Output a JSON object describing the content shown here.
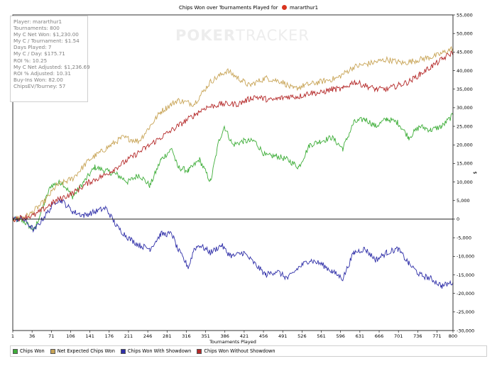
{
  "title": {
    "text": "Chips Won over Tournaments Played for",
    "player": "mararthur1"
  },
  "watermark": {
    "part1": "POKER",
    "part2": "TRACKER"
  },
  "info_box": {
    "lines": [
      "Player: mararthur1",
      "Tournaments: 800",
      "My C Net Won: $1,230.00",
      "My C / Tournament: $1.54",
      "Days Played: 7",
      "My C / Day: $175.71",
      "ROI %: 10.25",
      "My C Net Adjusted: $1,236.69",
      "ROI % Adjusted: 10.31",
      "Buy-Ins Won: 82.00",
      "ChipsEV/Tourney: 57"
    ]
  },
  "legend": [
    {
      "label": "Chips Won",
      "color": "#3fae3a"
    },
    {
      "label": "Net Expected Chips Won",
      "color": "#c8a456"
    },
    {
      "label": "Chips Won With Showdown",
      "color": "#2f2fa8"
    },
    {
      "label": "Chips Won Without Showdown",
      "color": "#b52a2a"
    }
  ],
  "chart_data": {
    "type": "line",
    "title": "Chips Won over Tournaments Played for mararthur1",
    "xlabel": "Tournaments Played",
    "ylabel": "$",
    "xlim": [
      1,
      800
    ],
    "ylim": [
      -30000,
      55000
    ],
    "x_ticks": [
      "1",
      "36",
      "71",
      "106",
      "141",
      "176",
      "211",
      "246",
      "281",
      "316",
      "351",
      "386",
      "421",
      "456",
      "491",
      "526",
      "561",
      "596",
      "631",
      "666",
      "701",
      "736",
      "771",
      "800"
    ],
    "y_ticks": [
      -30000,
      -25000,
      -20000,
      -15000,
      -10000,
      -5000,
      0,
      5000,
      10000,
      15000,
      20000,
      25000,
      30000,
      35000,
      40000,
      45000,
      50000,
      55000
    ],
    "y_tick_labels": [
      "-30,000",
      "-25,000",
      "-20,000",
      "-15,000",
      "-10,000",
      "-5,000",
      "0",
      "5,000",
      "10,000",
      "15,000",
      "20,000",
      "25,000",
      "30,000",
      "35,000",
      "40,000",
      "45,000",
      "50,000",
      "55,000"
    ],
    "series": [
      {
        "name": "Chips Won",
        "color": "#3fae3a",
        "x": [
          1,
          20,
          40,
          70,
          90,
          110,
          130,
          150,
          170,
          190,
          210,
          230,
          250,
          270,
          290,
          300,
          320,
          340,
          360,
          375,
          385,
          400,
          420,
          440,
          460,
          480,
          500,
          520,
          540,
          560,
          580,
          600,
          620,
          640,
          660,
          680,
          700,
          720,
          740,
          760,
          780,
          800
        ],
        "y": [
          0,
          -500,
          -3000,
          9000,
          10000,
          6000,
          10000,
          14000,
          13000,
          12000,
          10000,
          12000,
          9000,
          16000,
          19000,
          14000,
          13000,
          16000,
          10000,
          21000,
          25000,
          20000,
          21000,
          21000,
          17000,
          17000,
          16000,
          14000,
          20000,
          21000,
          22000,
          19000,
          26000,
          27000,
          25000,
          27000,
          26000,
          22000,
          25000,
          24000,
          25000,
          28000
        ]
      },
      {
        "name": "Net Expected Chips Won",
        "color": "#c8a456",
        "x": [
          1,
          30,
          60,
          80,
          110,
          140,
          170,
          200,
          230,
          250,
          270,
          280,
          300,
          330,
          360,
          390,
          410,
          430,
          460,
          490,
          510,
          530,
          560,
          590,
          620,
          650,
          680,
          710,
          740,
          770,
          800
        ],
        "y": [
          0,
          1000,
          5000,
          9000,
          11000,
          16000,
          19000,
          22000,
          21000,
          25000,
          29000,
          30000,
          32000,
          31000,
          37000,
          40000,
          38000,
          36000,
          38000,
          37000,
          35000,
          36000,
          37000,
          38000,
          41000,
          42000,
          43000,
          42000,
          43000,
          44000,
          46000
        ]
      },
      {
        "name": "Chips Won With Showdown",
        "color": "#2f2fa8",
        "x": [
          1,
          20,
          40,
          60,
          80,
          90,
          110,
          130,
          150,
          170,
          190,
          210,
          230,
          250,
          270,
          290,
          300,
          320,
          330,
          340,
          360,
          380,
          390,
          400,
          420,
          440,
          460,
          480,
          500,
          520,
          540,
          560,
          580,
          600,
          620,
          640,
          660,
          680,
          700,
          720,
          740,
          760,
          780,
          800
        ],
        "y": [
          0,
          0,
          -3000,
          1000,
          5000,
          5000,
          2000,
          1000,
          2000,
          3000,
          -2000,
          -5000,
          -7000,
          -8000,
          -4000,
          -4000,
          -8000,
          -13000,
          -8000,
          -7000,
          -9000,
          -7000,
          -9000,
          -10000,
          -9000,
          -12000,
          -15000,
          -14000,
          -16000,
          -13000,
          -11000,
          -12000,
          -14000,
          -16000,
          -9000,
          -8000,
          -11000,
          -9000,
          -8000,
          -12000,
          -15000,
          -16000,
          -18000,
          -17000
        ]
      },
      {
        "name": "Chips Won Without Showdown",
        "color": "#b52a2a",
        "x": [
          1,
          40,
          80,
          110,
          140,
          170,
          200,
          230,
          260,
          290,
          320,
          350,
          380,
          410,
          440,
          470,
          500,
          520,
          540,
          560,
          580,
          600,
          620,
          640,
          660,
          680,
          700,
          720,
          740,
          760,
          780,
          800
        ],
        "y": [
          0,
          1000,
          5000,
          7000,
          10000,
          12000,
          15000,
          18000,
          21000,
          24000,
          27000,
          30000,
          31000,
          31000,
          33000,
          32000,
          33000,
          33000,
          34000,
          34000,
          35000,
          35000,
          37000,
          36000,
          35000,
          35000,
          36000,
          37000,
          39000,
          41000,
          43000,
          45000
        ]
      }
    ]
  }
}
